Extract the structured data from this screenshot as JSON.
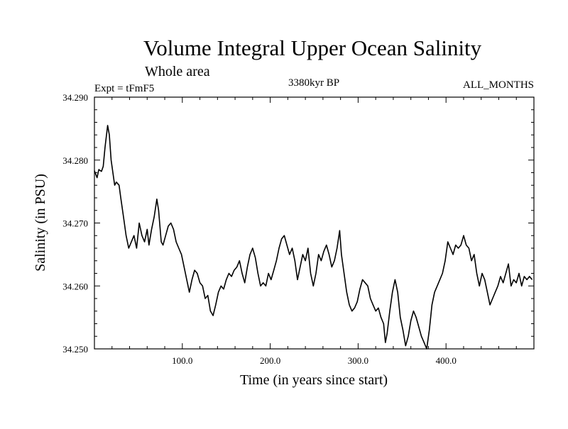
{
  "chart_data": {
    "type": "line",
    "title": "Volume Integral Upper Ocean Salinity",
    "subtitle": "Whole area",
    "annotations": {
      "left": "Expt = tFmF5",
      "center": "3380kyr BP",
      "right": "ALL_MONTHS"
    },
    "xlabel": "Time (in years since start)",
    "ylabel": "Salinity (in PSU)",
    "xlim": [
      0,
      500
    ],
    "ylim": [
      34.25,
      34.29
    ],
    "xticks": [
      100,
      200,
      300,
      400
    ],
    "xtick_labels": [
      "100.0",
      "200.0",
      "300.0",
      "400.0"
    ],
    "yticks": [
      34.25,
      34.26,
      34.27,
      34.28,
      34.29
    ],
    "ytick_labels": [
      "34.250",
      "34.260",
      "34.270",
      "34.280",
      "34.290"
    ],
    "grid": false,
    "series": [
      {
        "name": "Salinity",
        "color": "#000000",
        "points": [
          [
            0,
            34.2783
          ],
          [
            3,
            34.2772
          ],
          [
            5,
            34.2785
          ],
          [
            8,
            34.2782
          ],
          [
            10,
            34.279
          ],
          [
            12,
            34.282
          ],
          [
            15,
            34.2855
          ],
          [
            17,
            34.284
          ],
          [
            19,
            34.28
          ],
          [
            21,
            34.278
          ],
          [
            23,
            34.276
          ],
          [
            25,
            34.2765
          ],
          [
            28,
            34.276
          ],
          [
            30,
            34.274
          ],
          [
            33,
            34.271
          ],
          [
            36,
            34.268
          ],
          [
            39,
            34.266
          ],
          [
            42,
            34.267
          ],
          [
            45,
            34.268
          ],
          [
            48,
            34.266
          ],
          [
            51,
            34.27
          ],
          [
            54,
            34.268
          ],
          [
            57,
            34.267
          ],
          [
            60,
            34.269
          ],
          [
            62,
            34.2665
          ],
          [
            65,
            34.269
          ],
          [
            68,
            34.271
          ],
          [
            71,
            34.2738
          ],
          [
            73,
            34.272
          ],
          [
            76,
            34.267
          ],
          [
            78,
            34.2665
          ],
          [
            81,
            34.268
          ],
          [
            84,
            34.2695
          ],
          [
            87,
            34.27
          ],
          [
            90,
            34.269
          ],
          [
            93,
            34.267
          ],
          [
            96,
            34.266
          ],
          [
            99,
            34.265
          ],
          [
            102,
            34.263
          ],
          [
            105,
            34.261
          ],
          [
            108,
            34.259
          ],
          [
            111,
            34.261
          ],
          [
            114,
            34.2625
          ],
          [
            117,
            34.262
          ],
          [
            120,
            34.2605
          ],
          [
            123,
            34.26
          ],
          [
            126,
            34.258
          ],
          [
            129,
            34.2585
          ],
          [
            132,
            34.256
          ],
          [
            135,
            34.2553
          ],
          [
            138,
            34.257
          ],
          [
            141,
            34.259
          ],
          [
            144,
            34.26
          ],
          [
            147,
            34.2595
          ],
          [
            150,
            34.261
          ],
          [
            153,
            34.262
          ],
          [
            156,
            34.2615
          ],
          [
            159,
            34.2625
          ],
          [
            162,
            34.263
          ],
          [
            165,
            34.264
          ],
          [
            168,
            34.262
          ],
          [
            171,
            34.2605
          ],
          [
            174,
            34.263
          ],
          [
            177,
            34.265
          ],
          [
            180,
            34.266
          ],
          [
            183,
            34.2645
          ],
          [
            186,
            34.262
          ],
          [
            189,
            34.26
          ],
          [
            192,
            34.2605
          ],
          [
            195,
            34.26
          ],
          [
            198,
            34.262
          ],
          [
            201,
            34.261
          ],
          [
            204,
            34.2625
          ],
          [
            207,
            34.264
          ],
          [
            210,
            34.266
          ],
          [
            213,
            34.2675
          ],
          [
            216,
            34.268
          ],
          [
            219,
            34.2665
          ],
          [
            222,
            34.265
          ],
          [
            225,
            34.266
          ],
          [
            228,
            34.264
          ],
          [
            231,
            34.261
          ],
          [
            234,
            34.263
          ],
          [
            237,
            34.265
          ],
          [
            240,
            34.264
          ],
          [
            243,
            34.266
          ],
          [
            246,
            34.262
          ],
          [
            249,
            34.26
          ],
          [
            252,
            34.262
          ],
          [
            255,
            34.265
          ],
          [
            258,
            34.264
          ],
          [
            261,
            34.2655
          ],
          [
            264,
            34.2665
          ],
          [
            267,
            34.265
          ],
          [
            270,
            34.263
          ],
          [
            273,
            34.264
          ],
          [
            276,
            34.266
          ],
          [
            279,
            34.2688
          ],
          [
            281,
            34.265
          ],
          [
            284,
            34.262
          ],
          [
            287,
            34.259
          ],
          [
            290,
            34.257
          ],
          [
            293,
            34.256
          ],
          [
            296,
            34.2565
          ],
          [
            299,
            34.2575
          ],
          [
            302,
            34.2595
          ],
          [
            305,
            34.261
          ],
          [
            308,
            34.2605
          ],
          [
            311,
            34.26
          ],
          [
            314,
            34.258
          ],
          [
            317,
            34.257
          ],
          [
            320,
            34.256
          ],
          [
            323,
            34.2565
          ],
          [
            326,
            34.255
          ],
          [
            329,
            34.254
          ],
          [
            331,
            34.251
          ],
          [
            333,
            34.2525
          ],
          [
            336,
            34.256
          ],
          [
            339,
            34.259
          ],
          [
            342,
            34.261
          ],
          [
            345,
            34.259
          ],
          [
            348,
            34.255
          ],
          [
            351,
            34.253
          ],
          [
            354,
            34.2505
          ],
          [
            357,
            34.252
          ],
          [
            360,
            34.2545
          ],
          [
            363,
            34.256
          ],
          [
            366,
            34.255
          ],
          [
            369,
            34.2535
          ],
          [
            372,
            34.252
          ],
          [
            375,
            34.251
          ],
          [
            378,
            34.25
          ],
          [
            381,
            34.253
          ],
          [
            384,
            34.257
          ],
          [
            387,
            34.259
          ],
          [
            390,
            34.26
          ],
          [
            393,
            34.261
          ],
          [
            396,
            34.262
          ],
          [
            399,
            34.264
          ],
          [
            402,
            34.267
          ],
          [
            405,
            34.266
          ],
          [
            408,
            34.265
          ],
          [
            411,
            34.2665
          ],
          [
            414,
            34.266
          ],
          [
            417,
            34.2665
          ],
          [
            420,
            34.268
          ],
          [
            423,
            34.2665
          ],
          [
            426,
            34.266
          ],
          [
            429,
            34.264
          ],
          [
            432,
            34.265
          ],
          [
            435,
            34.262
          ],
          [
            438,
            34.26
          ],
          [
            441,
            34.262
          ],
          [
            444,
            34.261
          ],
          [
            447,
            34.259
          ],
          [
            450,
            34.257
          ],
          [
            453,
            34.258
          ],
          [
            456,
            34.259
          ],
          [
            459,
            34.26
          ],
          [
            462,
            34.2615
          ],
          [
            465,
            34.2605
          ],
          [
            468,
            34.262
          ],
          [
            471,
            34.2635
          ],
          [
            474,
            34.26
          ],
          [
            477,
            34.261
          ],
          [
            480,
            34.2605
          ],
          [
            483,
            34.262
          ],
          [
            486,
            34.26
          ],
          [
            489,
            34.2615
          ],
          [
            492,
            34.261
          ],
          [
            495,
            34.2615
          ],
          [
            498,
            34.261
          ]
        ]
      }
    ]
  }
}
